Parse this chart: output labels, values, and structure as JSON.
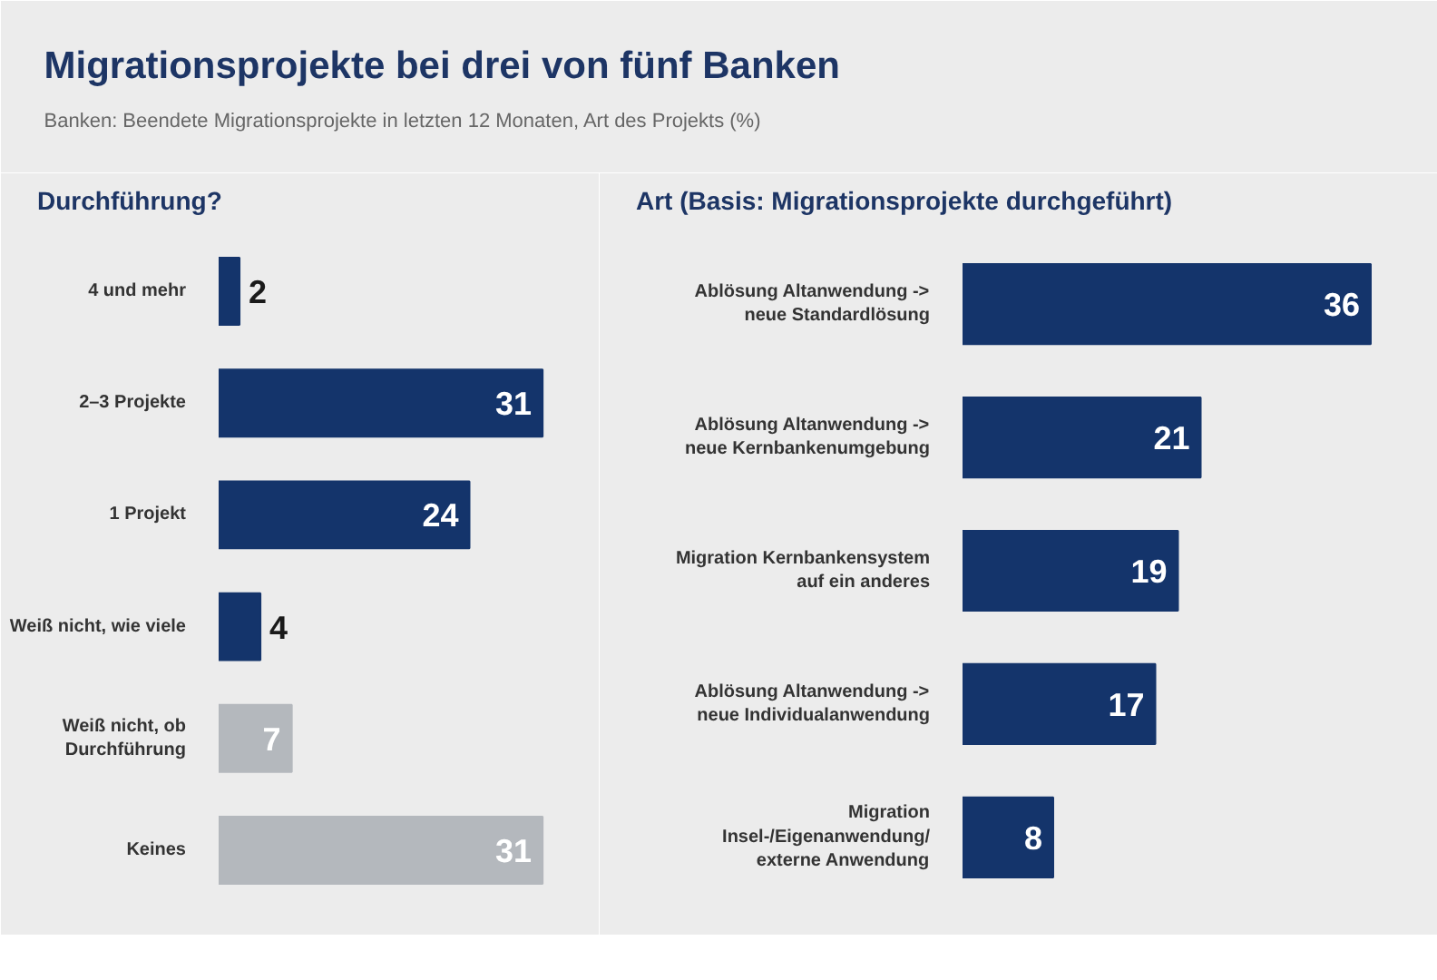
{
  "chart_data": [
    {
      "type": "other",
      "title": "Migrationsprojekte bei drei von fünf Banken",
      "subtitle": "Banken: Beendete Migrationsprojekte in letzten 12 Monaten, Art des Projekts (%)"
    },
    {
      "type": "bar",
      "orientation": "horizontal",
      "title": "Durchführung?",
      "data_labels": true,
      "categories": [
        "4 und mehr",
        "2–3 Projekte",
        "1 Projekt",
        "Weiß nicht, wie viele",
        "Weiß nicht, ob Durchführung",
        "Keines"
      ],
      "values": [
        2,
        31,
        24,
        4,
        7,
        31
      ],
      "colors": [
        "#14346b",
        "#14346b",
        "#14346b",
        "#14346b",
        "#b4b8bd",
        "#b4b8bd"
      ]
    },
    {
      "type": "bar",
      "orientation": "horizontal",
      "title": "Art (Basis: Migrationsprojekte durchgeführt)",
      "data_labels": true,
      "categories": [
        "Ablösung Altanwendung -> neue Standardlösung",
        "Ablösung Altanwendung -> neue Kernbankenumgebung",
        "Migration Kernbankensystem auf ein anderes",
        "Ablösung Altanwendung -> neue Individualanwendung",
        "Migration Insel-/Eigenanwendung/ externe Anwendung"
      ],
      "values": [
        36,
        21,
        19,
        17,
        8
      ],
      "colors": [
        "#14346b",
        "#14346b",
        "#14346b",
        "#14346b",
        "#14346b"
      ]
    }
  ]
}
